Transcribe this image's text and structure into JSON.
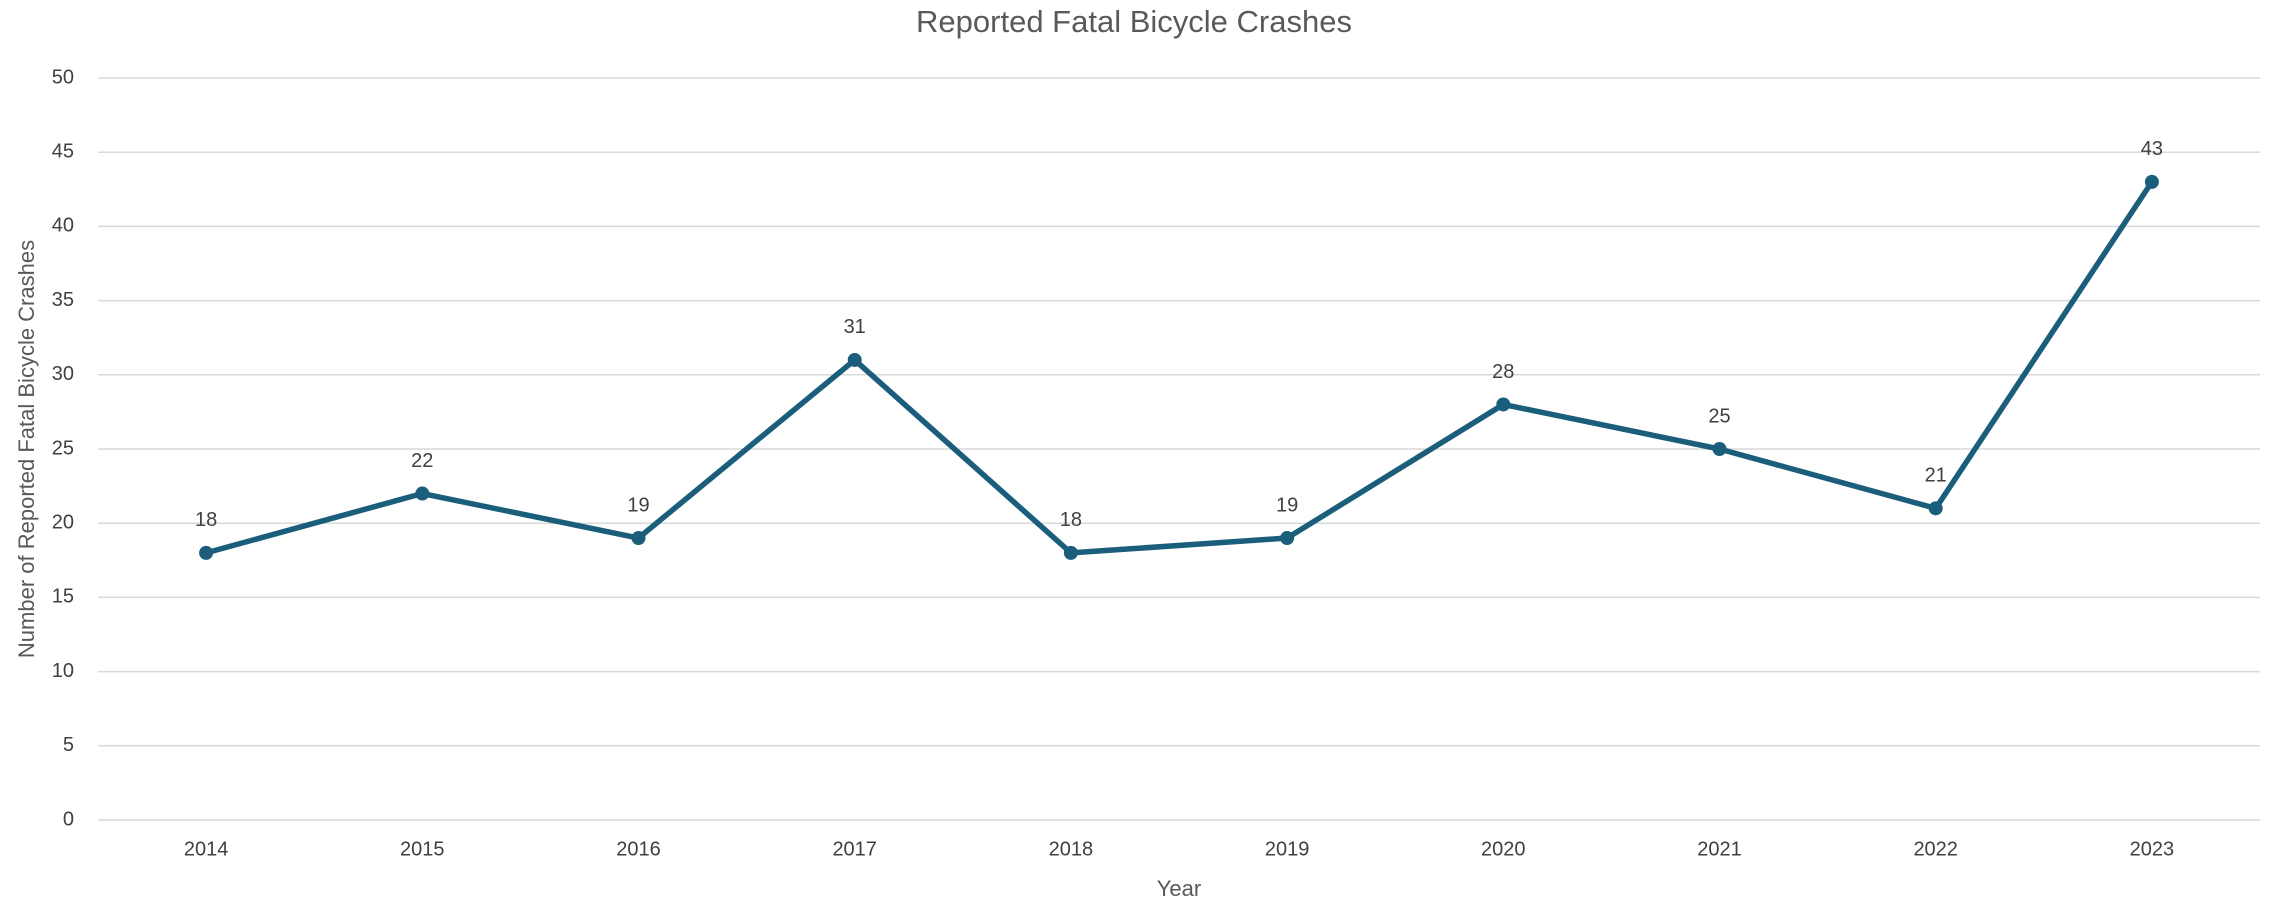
{
  "chart_data": {
    "type": "line",
    "title": "Reported Fatal Bicycle Crashes",
    "x_label": "Year",
    "y_label": "Number of Reported Fatal Bicycle Crashes",
    "categories": [
      "2014",
      "2015",
      "2016",
      "2017",
      "2018",
      "2019",
      "2020",
      "2021",
      "2022",
      "2023"
    ],
    "values": [
      18,
      22,
      19,
      31,
      18,
      19,
      28,
      25,
      21,
      43
    ],
    "color": "#1b5e7b",
    "ylim": [
      0,
      50
    ],
    "yticks": [
      0,
      5,
      10,
      15,
      20,
      25,
      30,
      35,
      40,
      45,
      50
    ],
    "grid": true
  }
}
